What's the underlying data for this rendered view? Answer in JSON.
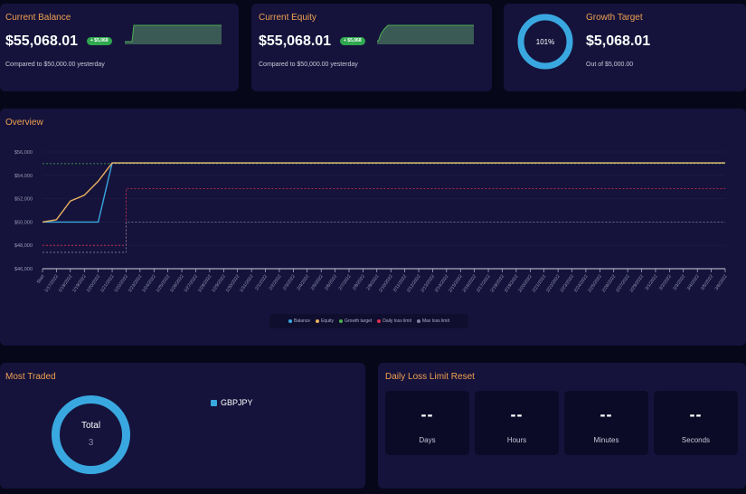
{
  "colors": {
    "accent": "#f0a050",
    "balance": "#3aa8e0",
    "equity": "#e8b060",
    "growth": "#4caf50",
    "daily_loss": "#e03050",
    "max_loss": "#8080a0"
  },
  "balance_card": {
    "title": "Current Balance",
    "value": "$55,068.01",
    "badge": "+ $5,068",
    "subtitle": "Compared to $50,000.00 yesterday"
  },
  "equity_card": {
    "title": "Current Equity",
    "value": "$55,068.01",
    "badge": "+ $5,068",
    "subtitle": "Compared to $50,000.00 yesterday"
  },
  "growth_card": {
    "title": "Growth Target",
    "value": "$5,068.01",
    "subtitle": "Out of $5,000.00",
    "ring_label": "101%",
    "progress": 1.0
  },
  "overview": {
    "title": "Overview",
    "legend": [
      {
        "label": "Balance",
        "color": "#3aa8e0"
      },
      {
        "label": "Equity",
        "color": "#e8b060"
      },
      {
        "label": "Growth target",
        "color": "#4caf50"
      },
      {
        "label": "Daily loss limit",
        "color": "#e03050"
      },
      {
        "label": "Max loss limit",
        "color": "#8080a0"
      }
    ]
  },
  "chart_data": {
    "type": "line",
    "ylim": [
      46000,
      56000
    ],
    "y_ticks": [
      "$56,000",
      "$54,000",
      "$52,000",
      "$50,000",
      "$48,000",
      "$46,000"
    ],
    "y_tick_values": [
      56000,
      54000,
      52000,
      50000,
      48000,
      46000
    ],
    "x": [
      "Start",
      "1/17/2022",
      "1/18/2022",
      "1/19/2022",
      "1/20/2022",
      "1/21/2022",
      "1/22/2022",
      "1/23/2022",
      "1/24/2022",
      "1/25/2022",
      "1/26/2022",
      "1/27/2022",
      "1/28/2022",
      "1/29/2022",
      "1/30/2022",
      "1/31/2022",
      "2/1/2022",
      "2/2/2022",
      "2/3/2022",
      "2/4/2022",
      "2/5/2022",
      "2/6/2022",
      "2/7/2022",
      "2/8/2022",
      "2/9/2022",
      "2/10/2022",
      "2/11/2022",
      "2/12/2022",
      "2/13/2022",
      "2/14/2022",
      "2/15/2022",
      "2/16/2022",
      "2/17/2022",
      "2/18/2022",
      "2/19/2022",
      "2/20/2022",
      "2/21/2022",
      "2/22/2022",
      "2/23/2022",
      "2/24/2022",
      "2/25/2022",
      "2/26/2022",
      "2/27/2022",
      "2/28/2022",
      "3/1/2022",
      "3/2/2022",
      "3/3/2022",
      "3/4/2022",
      "3/5/2022",
      "3/6/2022"
    ],
    "series": [
      {
        "name": "Balance",
        "color": "#3aa8e0",
        "dashed": false,
        "values": [
          50000,
          50000,
          50000,
          50000,
          50000,
          55068,
          55068,
          55068,
          55068,
          55068,
          55068,
          55068,
          55068,
          55068,
          55068,
          55068,
          55068,
          55068,
          55068,
          55068,
          55068,
          55068,
          55068,
          55068,
          55068,
          55068,
          55068,
          55068,
          55068,
          55068,
          55068,
          55068,
          55068,
          55068,
          55068,
          55068,
          55068,
          55068,
          55068,
          55068,
          55068,
          55068,
          55068,
          55068,
          55068,
          55068,
          55068,
          55068,
          55068,
          55068
        ]
      },
      {
        "name": "Equity",
        "color": "#e8b060",
        "dashed": false,
        "values": [
          50000,
          50200,
          51800,
          52300,
          53500,
          55068,
          55068,
          55068,
          55068,
          55068,
          55068,
          55068,
          55068,
          55068,
          55068,
          55068,
          55068,
          55068,
          55068,
          55068,
          55068,
          55068,
          55068,
          55068,
          55068,
          55068,
          55068,
          55068,
          55068,
          55068,
          55068,
          55068,
          55068,
          55068,
          55068,
          55068,
          55068,
          55068,
          55068,
          55068,
          55068,
          55068,
          55068,
          55068,
          55068,
          55068,
          55068,
          55068,
          55068,
          55068
        ]
      },
      {
        "name": "Growth target",
        "color": "#4caf50",
        "dashed": true,
        "values": [
          55000,
          55000,
          55000,
          55000,
          55000,
          55000,
          55000,
          55000,
          55000,
          55000,
          55000,
          55000,
          55000,
          55000,
          55000,
          55000,
          55000,
          55000,
          55000,
          55000,
          55000,
          55000,
          55000,
          55000,
          55000,
          55000,
          55000,
          55000,
          55000,
          55000,
          55000,
          55000,
          55000,
          55000,
          55000,
          55000,
          55000,
          55000,
          55000,
          55000,
          55000,
          55000,
          55000,
          55000,
          55000,
          55000,
          55000,
          55000,
          55000,
          55000
        ]
      },
      {
        "name": "Daily loss limit",
        "color": "#e03050",
        "dashed": true,
        "values": [
          48000,
          48000,
          48000,
          48000,
          48000,
          48000,
          52850,
          52850,
          52850,
          52850,
          52850,
          52850,
          52850,
          52850,
          52850,
          52850,
          52850,
          52850,
          52850,
          52850,
          52850,
          52850,
          52850,
          52850,
          52850,
          52850,
          52850,
          52850,
          52850,
          52850,
          52850,
          52850,
          52850,
          52850,
          52850,
          52850,
          52850,
          52850,
          52850,
          52850,
          52850,
          52850,
          52850,
          52850,
          52850,
          52850,
          52850,
          52850,
          52850,
          52850
        ]
      },
      {
        "name": "Max loss limit",
        "color": "#8080a0",
        "dashed": true,
        "values": [
          47400,
          47400,
          47400,
          47400,
          47400,
          47400,
          50000,
          50000,
          50000,
          50000,
          50000,
          50000,
          50000,
          50000,
          50000,
          50000,
          50000,
          50000,
          50000,
          50000,
          50000,
          50000,
          50000,
          50000,
          50000,
          50000,
          50000,
          50000,
          50000,
          50000,
          50000,
          50000,
          50000,
          50000,
          50000,
          50000,
          50000,
          50000,
          50000,
          50000,
          50000,
          50000,
          50000,
          50000,
          50000,
          50000,
          50000,
          50000,
          50000,
          50000
        ]
      }
    ]
  },
  "most_traded": {
    "title": "Most Traded",
    "center_label": "Total",
    "center_value": "3",
    "items": [
      {
        "label": "GBPJPY",
        "color": "#3aa8e0"
      }
    ]
  },
  "countdown": {
    "title": "Daily Loss Limit Reset",
    "boxes": [
      {
        "value": "--",
        "label": "Days"
      },
      {
        "value": "--",
        "label": "Hours"
      },
      {
        "value": "--",
        "label": "Minutes"
      },
      {
        "value": "--",
        "label": "Seconds"
      }
    ]
  }
}
